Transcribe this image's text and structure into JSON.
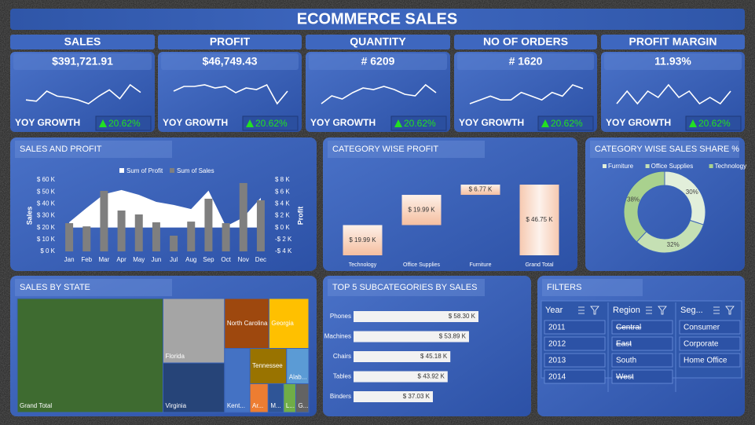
{
  "title": "ECOMMERCE SALES",
  "kpis": [
    {
      "label": "SALES",
      "value": "$391,721.91",
      "growth_label": "YOY GROWTH",
      "growth": "20.62%",
      "trend": [
        5,
        4,
        12,
        8,
        7,
        5,
        2,
        8,
        13,
        6,
        17,
        11
      ]
    },
    {
      "label": "PROFIT",
      "value": "$46,749.43",
      "growth_label": "YOY GROWTH",
      "growth": "20.62%",
      "trend": [
        17,
        20,
        20,
        21,
        19,
        20,
        16,
        19,
        18,
        21,
        9,
        17
      ]
    },
    {
      "label": "QUANTITY",
      "value": "# 6209",
      "growth_label": "YOY GROWTH",
      "growth": "20.62%",
      "trend": [
        3,
        8,
        6,
        10,
        13,
        12,
        14,
        12,
        9,
        8,
        15,
        10
      ]
    },
    {
      "label": "NO OF ORDERS",
      "value": "# 1620",
      "growth_label": "YOY GROWTH",
      "growth": "20.62%",
      "trend": [
        5,
        6,
        7,
        6,
        6,
        8,
        7,
        6,
        8,
        7,
        10,
        9
      ]
    },
    {
      "label": "PROFIT MARGIN",
      "value": "11.93%",
      "growth_label": "YOY GROWTH",
      "growth": "20.62%",
      "trend": [
        18,
        20,
        18,
        20,
        19,
        21,
        19,
        20,
        18,
        19,
        18,
        20
      ]
    }
  ],
  "chart_data": [
    {
      "type": "combo",
      "title": "SALES AND PROFIT",
      "categories": [
        "Jan",
        "Feb",
        "Mar",
        "Apr",
        "May",
        "Jun",
        "Jul",
        "Aug",
        "Sep",
        "Oct",
        "Nov",
        "Dec"
      ],
      "series": [
        {
          "name": "Sum of Profit",
          "color": "#ffffff",
          "kind": "area",
          "axis": "y2",
          "values": [
            900,
            3300,
            5600,
            6300,
            5500,
            4300,
            3800,
            3100,
            6200,
            200,
            1700,
            5000
          ]
        },
        {
          "name": "Sum of Sales",
          "color": "#7f7f7f",
          "kind": "bar",
          "values": [
            23700,
            21000,
            50800,
            34300,
            31000,
            24400,
            13200,
            25000,
            44200,
            23700,
            57400,
            42900
          ]
        }
      ],
      "ylabel": "Sales",
      "y2label": "Profit",
      "legend": "top",
      "ylim": [
        0,
        60000
      ],
      "yticks": [
        {
          "value": 0,
          "label": "$ 0 K"
        },
        {
          "value": 10000,
          "label": "$ 10 K"
        },
        {
          "value": 20000,
          "label": "$ 20 K"
        },
        {
          "value": 30000,
          "label": "$ 30 K"
        },
        {
          "value": 40000,
          "label": "$ 40 K"
        },
        {
          "value": 50000,
          "label": "$ 50 K"
        },
        {
          "value": 60000,
          "label": "$ 60 K"
        }
      ],
      "y2lim": [
        -4000,
        8000
      ],
      "y2ticks": [
        {
          "value": -4000,
          "label": "-$ 4 K"
        },
        {
          "value": -2000,
          "label": "-$ 2 K"
        },
        {
          "value": 0,
          "label": "$ 0 K"
        },
        {
          "value": 2000,
          "label": "$ 2 K"
        },
        {
          "value": 4000,
          "label": "$ 4 K"
        },
        {
          "value": 6000,
          "label": "$ 6 K"
        },
        {
          "value": 8000,
          "label": "$ 8 K"
        }
      ]
    },
    {
      "type": "waterfall",
      "title": "CATEGORY WISE PROFIT",
      "categories": [
        "Technology",
        "Office Supplies",
        "Furniture",
        "Grand Total"
      ],
      "values": [
        19990,
        19990,
        6770,
        46750
      ],
      "value_labels": [
        "$ 19.99 K",
        "$ 19.99 K",
        "$ 6.77 K",
        "$ 46.75 K"
      ]
    },
    {
      "type": "donut",
      "title": "CATEGORY WISE SALES SHARE %",
      "categories": [
        "Furniture",
        "Office Supplies",
        "Technology"
      ],
      "values": [
        30,
        32,
        38
      ],
      "value_labels": [
        "30%",
        "32%",
        "38%"
      ],
      "colors": [
        "#e2efda",
        "#c5e0b4",
        "#a9d18e"
      ],
      "legend": "top"
    },
    {
      "type": "treemap",
      "title": "SALES BY STATE",
      "categories": [
        "Grand Total",
        "Florida",
        "Virginia",
        "North Carolina",
        "Georgia",
        "Kent...",
        "Tennessee",
        "Alab...",
        "Ar...",
        "M...",
        "L...",
        "G..."
      ],
      "values": [
        391722,
        93600,
        71800,
        52300,
        46800,
        38200,
        30600,
        18500,
        12400,
        10400,
        8300,
        8800
      ],
      "colors": [
        "#3e6b30",
        "#a5a5a5",
        "#264478",
        "#9e480e",
        "#ffc000",
        "#4472c4",
        "#997300",
        "#5b9bd5",
        "#ed7d31",
        "#2f5597",
        "#70ad47",
        "#636363"
      ]
    },
    {
      "type": "hbar",
      "title": "TOP 5 SUBCATEGORIES BY SALES",
      "categories": [
        "Phones",
        "Machines",
        "Chairs",
        "Tables",
        "Binders"
      ],
      "values": [
        58300,
        53890,
        45180,
        43920,
        37030
      ],
      "value_labels": [
        "$ 58.30 K",
        "$ 53.89 K",
        "$ 45.18 K",
        "$ 43.92 K",
        "$ 37.03 K"
      ],
      "color": "#f2f2f2"
    }
  ],
  "filters": {
    "title": "FILTERS",
    "slicers": [
      {
        "name": "Year",
        "items": [
          "2011",
          "2012",
          "2013",
          "2014"
        ],
        "disabled": [
          false,
          false,
          false,
          false
        ]
      },
      {
        "name": "Region",
        "items": [
          "Central",
          "East",
          "South",
          "West"
        ],
        "disabled": [
          true,
          true,
          false,
          true
        ]
      },
      {
        "name": "Seg...",
        "items": [
          "Consumer",
          "Corporate",
          "Home Office"
        ],
        "disabled": [
          false,
          false,
          false
        ]
      }
    ]
  }
}
